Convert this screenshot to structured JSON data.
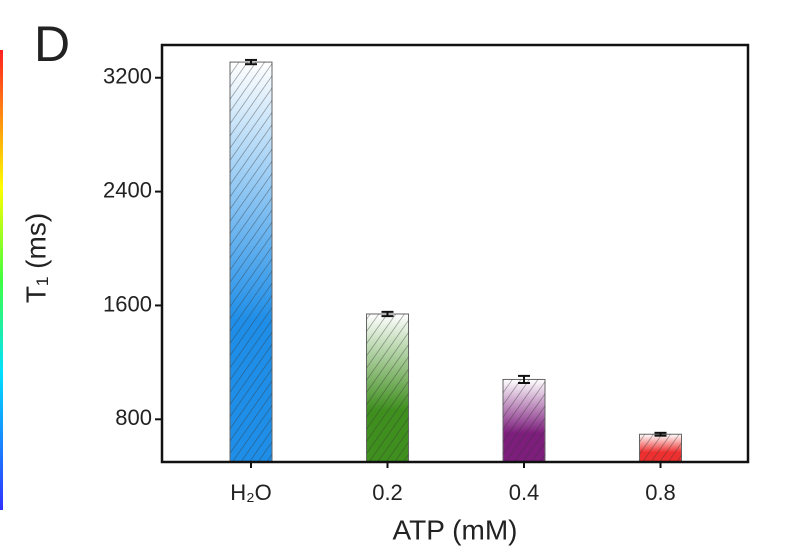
{
  "chart_data": {
    "type": "bar",
    "panel_label": "D",
    "y_label": "T₁ (ms)",
    "x_label": "ATP (mM)",
    "categories": [
      "H₂O",
      "0.2",
      "0.4",
      "0.8"
    ],
    "values": [
      3310,
      1540,
      1080,
      695
    ],
    "errors": [
      15,
      15,
      25,
      10
    ],
    "colors": [
      "#1e8ee8",
      "#3f8f1e",
      "#7d1e7d",
      "#ee2f2f"
    ],
    "ylim": [
      500,
      3430
    ],
    "yticks": [
      800,
      1600,
      2400,
      3200
    ],
    "grid": false
  }
}
